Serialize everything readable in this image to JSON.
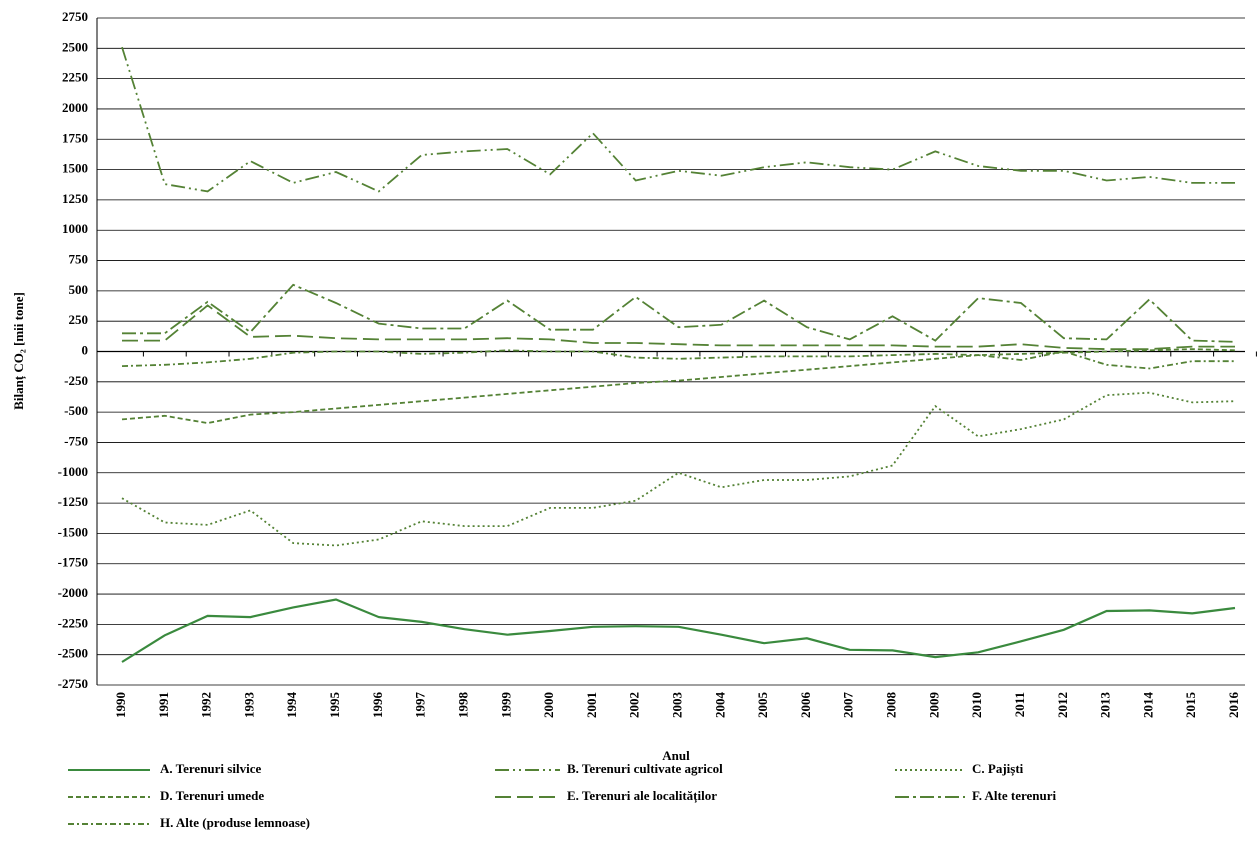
{
  "chart_data": {
    "type": "line",
    "x_label": "Anul",
    "y_label": "Bilanț CO₂ [mii tone]",
    "categories": [
      "1990",
      "1991",
      "1992",
      "1993",
      "1994",
      "1995",
      "1996",
      "1997",
      "1998",
      "1999",
      "2000",
      "2001",
      "2002",
      "2003",
      "2004",
      "2005",
      "2006",
      "2007",
      "2008",
      "2009",
      "2010",
      "2011",
      "2012",
      "2013",
      "2014",
      "2015",
      "2016"
    ],
    "ylim": [
      -2750,
      2750
    ],
    "yticks": [
      -2750,
      -2500,
      -2250,
      -2000,
      -1750,
      -1500,
      -1250,
      -1000,
      -750,
      -500,
      -250,
      0,
      250,
      500,
      750,
      1000,
      1250,
      1500,
      1750,
      2000,
      2250,
      2500,
      2750
    ],
    "grid": true,
    "legend": "bottom",
    "series": [
      {
        "name": "A. Terenuri silvice",
        "color": "#3a8a3e",
        "dash": "solid",
        "values": [
          -2560,
          -2340,
          -2180,
          -2190,
          -2110,
          -2045,
          -2190,
          -2230,
          -2290,
          -2335,
          -2305,
          -2270,
          -2265,
          -2270,
          -2335,
          -2405,
          -2365,
          -2460,
          -2465,
          -2520,
          -2480,
          -2390,
          -2295,
          -2140,
          -2135,
          -2160,
          -2115
        ]
      },
      {
        "name": "B. Terenuri cultivate agricol",
        "color": "#548235",
        "dash": "dash-dot-dot",
        "values": [
          2510,
          1380,
          1320,
          1570,
          1390,
          1480,
          1320,
          1620,
          1650,
          1670,
          1460,
          1800,
          1410,
          1490,
          1450,
          1520,
          1560,
          1520,
          1500,
          1650,
          1530,
          1490,
          1490,
          1410,
          1440,
          1390,
          1390
        ]
      },
      {
        "name": "C. Pajiști",
        "color": "#548235",
        "dash": "dot",
        "values": [
          -1210,
          -1410,
          -1430,
          -1310,
          -1580,
          -1600,
          -1550,
          -1400,
          -1440,
          -1440,
          -1290,
          -1290,
          -1230,
          -1000,
          -1120,
          -1060,
          -1060,
          -1030,
          -940,
          -450,
          -700,
          -640,
          -560,
          -360,
          -340,
          -420,
          -410
        ]
      },
      {
        "name": "D. Terenuri umede",
        "color": "#548235",
        "dash": "short-dash",
        "values": [
          -560,
          -530,
          -590,
          -520,
          -500,
          -470,
          -440,
          -410,
          -380,
          -350,
          -320,
          -290,
          -260,
          -240,
          -210,
          -180,
          -150,
          -120,
          -90,
          -60,
          -30,
          -20,
          -10,
          0,
          10,
          20,
          10
        ]
      },
      {
        "name": "E. Terenuri ale localităților",
        "color": "#548235",
        "dash": "long-dash",
        "values": [
          90,
          90,
          380,
          120,
          130,
          110,
          100,
          100,
          100,
          110,
          100,
          70,
          70,
          60,
          50,
          50,
          50,
          50,
          50,
          40,
          40,
          60,
          30,
          20,
          20,
          40,
          40
        ]
      },
      {
        "name": "F. Alte terenuri",
        "color": "#548235",
        "dash": "dash-dot",
        "values": [
          150,
          150,
          410,
          160,
          550,
          400,
          230,
          190,
          190,
          420,
          180,
          180,
          450,
          200,
          220,
          420,
          200,
          100,
          290,
          90,
          440,
          400,
          110,
          100,
          430,
          90,
          80
        ]
      },
      {
        "name": "H. Alte (produse lemnoase)",
        "color": "#548235",
        "dash": "short-dash-dot",
        "values": [
          -120,
          -110,
          -90,
          -60,
          -10,
          0,
          0,
          -20,
          -10,
          10,
          0,
          0,
          -50,
          -60,
          -50,
          -40,
          -40,
          -40,
          -30,
          -20,
          -30,
          -70,
          0,
          -110,
          -140,
          -80,
          -80
        ]
      }
    ]
  }
}
